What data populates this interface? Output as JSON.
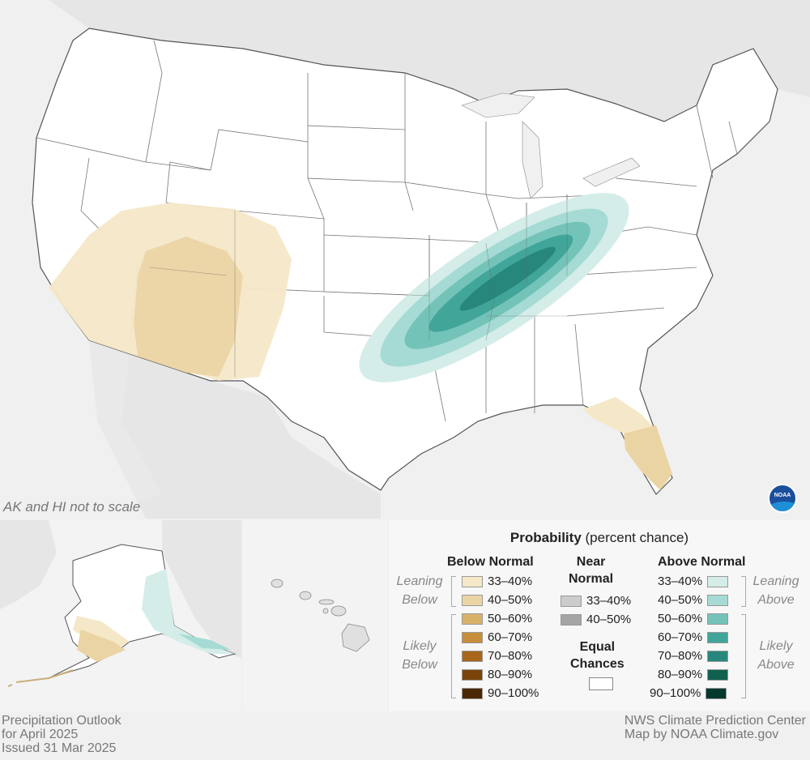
{
  "map": {
    "note": "AK and HI not to scale",
    "logo_text": "NOAA",
    "colors": {
      "below_33_40": "#f5e8c8",
      "below_40_50": "#ebd4a4",
      "above_33_40": "#d4ede9",
      "above_40_50": "#a5dbd4",
      "above_50_60": "#74c3b9",
      "above_60_70": "#41a59a",
      "above_70_80": "#27877c",
      "state_fill": "#ffffff",
      "neighbor_fill": "#e6e6e6",
      "water": "#f0f0f0"
    }
  },
  "legend": {
    "title_bold": "Probability",
    "title_rest": " (percent chance)",
    "below_header": "Below Normal",
    "near_header_1": "Near",
    "near_header_2": "Normal",
    "above_header": "Above Normal",
    "leaning_below_1": "Leaning",
    "leaning_below_2": "Below",
    "likely_below_1": "Likely",
    "likely_below_2": "Below",
    "leaning_above_1": "Leaning",
    "leaning_above_2": "Above",
    "likely_above_1": "Likely",
    "likely_above_2": "Above",
    "equal_1": "Equal",
    "equal_2": "Chances",
    "below": [
      {
        "label": "33–40%",
        "color": "#f5e8c8"
      },
      {
        "label": "40–50%",
        "color": "#ebd4a4"
      },
      {
        "label": "50–60%",
        "color": "#d9b26a"
      },
      {
        "label": "60–70%",
        "color": "#c78e3c"
      },
      {
        "label": "70–80%",
        "color": "#a7661c"
      },
      {
        "label": "80–90%",
        "color": "#7a4309"
      },
      {
        "label": "90–100%",
        "color": "#4b2703"
      }
    ],
    "near": [
      {
        "label": "33–40%",
        "color": "#cccccc"
      },
      {
        "label": "40–50%",
        "color": "#a5a5a5"
      }
    ],
    "above": [
      {
        "label": "33–40%",
        "color": "#d4ede9"
      },
      {
        "label": "40–50%",
        "color": "#a5dbd4"
      },
      {
        "label": "50–60%",
        "color": "#74c3b9"
      },
      {
        "label": "60–70%",
        "color": "#41a59a"
      },
      {
        "label": "70–80%",
        "color": "#27877c"
      },
      {
        "label": "80–90%",
        "color": "#10614f"
      },
      {
        "label": "90–100%",
        "color": "#04392e"
      }
    ]
  },
  "footer": {
    "left_1": "Precipitation Outlook",
    "left_2": "for April 2025",
    "left_3": "Issued 31 Mar 2025",
    "right_1": "NWS Climate Prediction Center",
    "right_2": "Map by NOAA Climate.gov"
  }
}
